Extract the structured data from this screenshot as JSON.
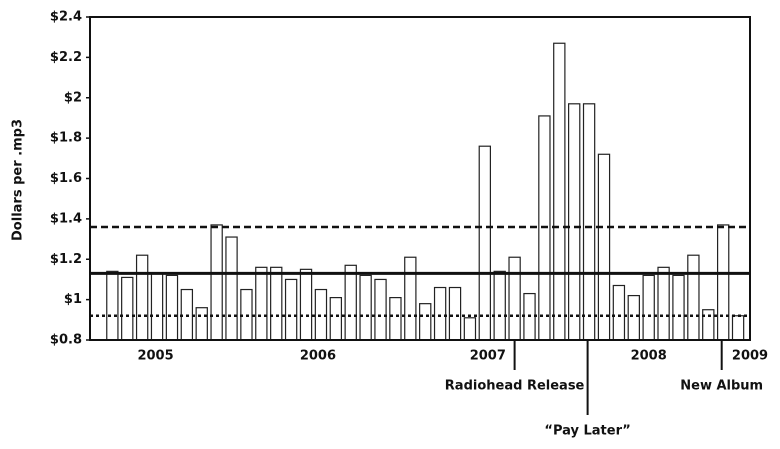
{
  "chart_data": {
    "type": "bar",
    "ylabel": "Dollars per .mp3",
    "x": [
      0,
      1,
      2,
      3,
      4,
      5,
      6,
      7,
      8,
      9,
      10,
      11,
      12,
      13,
      14,
      15,
      16,
      17,
      18,
      19,
      20,
      21,
      22,
      23,
      24,
      25,
      26,
      27,
      28,
      29,
      30,
      31,
      32,
      33,
      34,
      35,
      36,
      37,
      38,
      39,
      40,
      41,
      42
    ],
    "values": [
      1.14,
      1.11,
      1.22,
      1.13,
      1.12,
      1.05,
      0.96,
      1.37,
      1.31,
      1.05,
      1.16,
      1.16,
      1.1,
      1.15,
      1.05,
      1.01,
      1.17,
      1.12,
      1.1,
      1.01,
      1.21,
      0.98,
      1.06,
      1.06,
      0.91,
      1.76,
      1.14,
      1.21,
      1.03,
      1.91,
      2.27,
      1.97,
      1.97,
      1.72,
      1.07,
      1.02,
      1.12,
      1.16,
      1.12,
      1.22,
      0.95,
      1.37,
      0.92
    ],
    "color": "#ffffff",
    "stroke": "#222222",
    "xlim": [
      -1.5,
      42.8
    ],
    "xticks": [
      {
        "value": 2.9,
        "label": "2005"
      },
      {
        "value": 13.8,
        "label": "2006"
      },
      {
        "value": 25.2,
        "label": "2007"
      },
      {
        "value": 36.0,
        "label": "2008"
      },
      {
        "value": 42.8,
        "label": "2009"
      }
    ],
    "ylim": [
      0.8,
      2.4
    ],
    "yticks": [
      {
        "value": 0.8,
        "label": "$0.8"
      },
      {
        "value": 1.0,
        "label": "$1"
      },
      {
        "value": 1.2,
        "label": "$1.2"
      },
      {
        "value": 1.4,
        "label": "$1.4"
      },
      {
        "value": 1.6,
        "label": "$1.6"
      },
      {
        "value": 1.8,
        "label": "$1.8"
      },
      {
        "value": 2.0,
        "label": "$2"
      },
      {
        "value": 2.2,
        "label": "$2.2"
      },
      {
        "value": 2.4,
        "label": "$2.4"
      }
    ],
    "reference_lines": [
      {
        "value": 1.13,
        "style": "solid"
      },
      {
        "value": 1.36,
        "style": "dashed"
      },
      {
        "value": 0.92,
        "style": "dotted"
      }
    ],
    "annotations": [
      {
        "text": "Radiohead Release",
        "x": 27
      },
      {
        "text": "“Pay Later”",
        "x": 31.9
      },
      {
        "text": "New Album",
        "x": 40.9
      }
    ]
  }
}
